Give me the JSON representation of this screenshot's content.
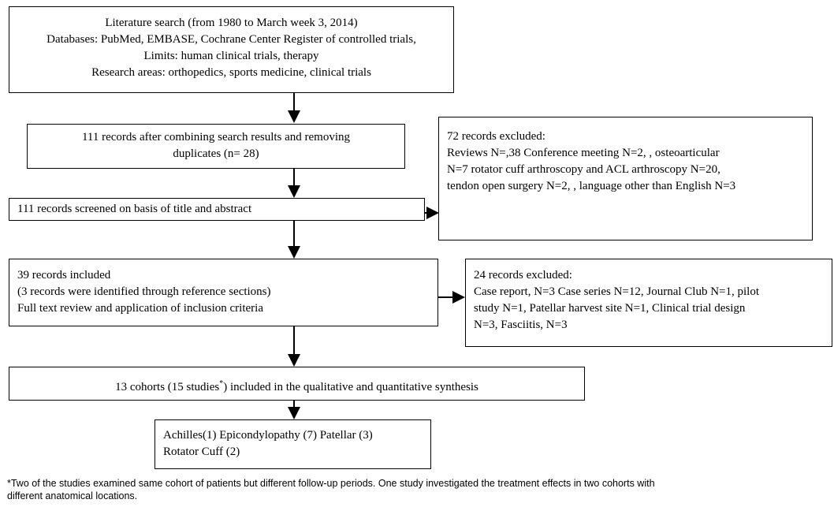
{
  "nodes": [
    {
      "lines": [
        "Literature search (from 1980 to March week 3, 2014)",
        "Databases: PubMed, EMBASE, Cochrane Center Register of controlled trials,",
        "Limits: human clinical trials, therapy",
        "Research areas: orthopedics, sports medicine, clinical trials"
      ]
    },
    {
      "lines": [
        "111 records after combining search results and removing",
        "duplicates (n= 28)"
      ]
    },
    {
      "lines": [
        "111 records screened on basis of title and abstract"
      ]
    },
    {
      "lines": [
        "72 records excluded:",
        "Reviews N=,38 Conference meeting N=2, , osteoarticular",
        "N=7 rotator cuff arthroscopy and ACL arthroscopy N=20,",
        "tendon open surgery N=2, , language other than English N=3"
      ]
    },
    {
      "lines": [
        "39 records included",
        "(3 records were identified through reference sections)",
        "Full text review and application of inclusion criteria"
      ]
    },
    {
      "lines": [
        "24 records excluded:",
        "Case report, N=3 Case series N=12, Journal Club N=1,  pilot",
        "study N=1, Patellar harvest site N=1, Clinical trial design",
        "N=3, Fasciitis, N=3"
      ]
    },
    {
      "lines": [
        "13 cohorts (15 studies",
        "*",
        ") included in the qualitative and quantitative synthesis"
      ]
    },
    {
      "lines": [
        "Achilles(1) Epicondylopathy (7) Patellar (3)",
        "Rotator Cuff (2)"
      ]
    }
  ],
  "footnote": {
    "lines": [
      "*Two of the studies examined same cohort of patients but different follow-up periods. One study investigated the treatment effects in two cohorts with",
      "different anatomical locations."
    ]
  }
}
